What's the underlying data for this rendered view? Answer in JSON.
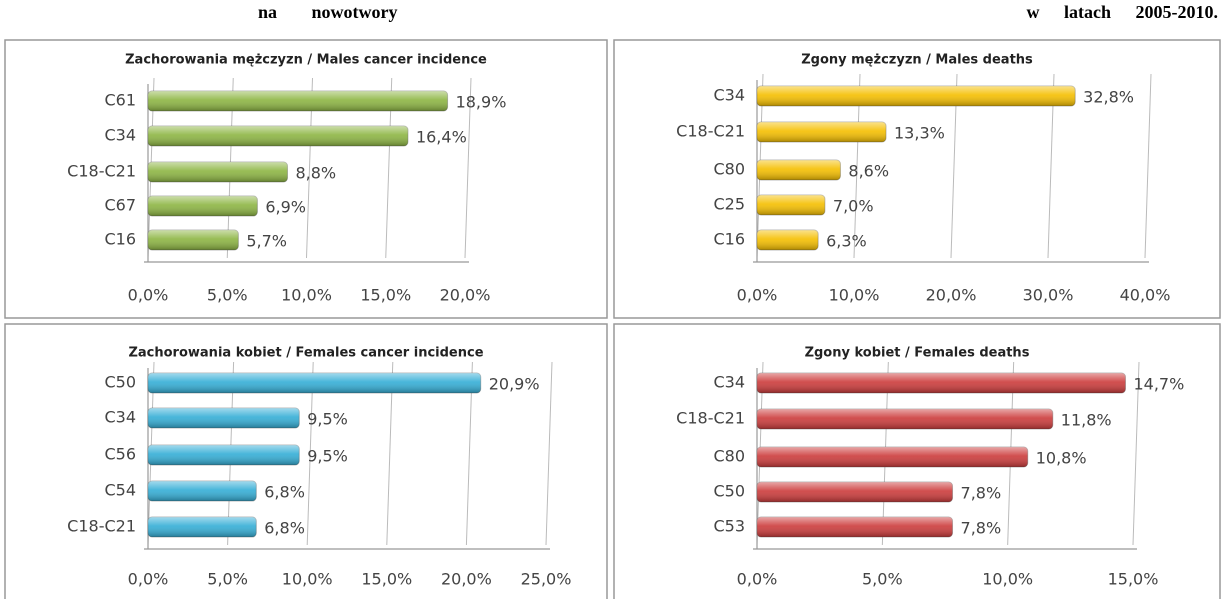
{
  "header": {
    "left": "na nowotwory",
    "right": "w latach 2005-2010."
  },
  "chart_data": [
    {
      "type": "bar",
      "orientation": "horizontal",
      "title": "Zachorowania mężczyzn / Males cancer incidence",
      "categories": [
        "C61",
        "C34",
        "C18-C21",
        "C67",
        "C16"
      ],
      "values": [
        18.9,
        16.4,
        8.8,
        6.9,
        5.7
      ],
      "value_labels": [
        "18,9%",
        "16,4%",
        "8,8%",
        "6,9%",
        "5,7%"
      ],
      "color": "#8db543",
      "grid": true,
      "xlim": [
        0,
        20
      ],
      "xticks": [
        {
          "value": 0,
          "label": "0,0%"
        },
        {
          "value": 5,
          "label": "5,0%"
        },
        {
          "value": 10,
          "label": "10,0%"
        },
        {
          "value": 15,
          "label": "15,0%"
        },
        {
          "value": 20,
          "label": "20,0%"
        }
      ]
    },
    {
      "type": "bar",
      "orientation": "horizontal",
      "title": "Zgony mężczyzn / Males deaths",
      "categories": [
        "C34",
        "C18-C21",
        "C80",
        "C25",
        "C16"
      ],
      "values": [
        32.8,
        13.3,
        8.6,
        7.0,
        6.3
      ],
      "value_labels": [
        "32,8%",
        "13,3%",
        "8,6%",
        "7,0%",
        "6,3%"
      ],
      "color": "#f5bf00",
      "grid": true,
      "xlim": [
        0,
        40
      ],
      "xticks": [
        {
          "value": 0,
          "label": "0,0%"
        },
        {
          "value": 10,
          "label": "10,0%"
        },
        {
          "value": 20,
          "label": "20,0%"
        },
        {
          "value": 30,
          "label": "30,0%"
        },
        {
          "value": 40,
          "label": "40,0%"
        }
      ]
    },
    {
      "type": "bar",
      "orientation": "horizontal",
      "title": "Zachorowania kobiet / Females cancer incidence",
      "categories": [
        "C50",
        "C34",
        "C56",
        "C54",
        "C18-C21"
      ],
      "values": [
        20.9,
        9.5,
        9.5,
        6.8,
        6.8
      ],
      "value_labels": [
        "20,9%",
        "9,5%",
        "9,5%",
        "6,8%",
        "6,8%"
      ],
      "color": "#34aed6",
      "grid": true,
      "xlim": [
        0,
        25
      ],
      "xticks": [
        {
          "value": 0,
          "label": "0,0%"
        },
        {
          "value": 5,
          "label": "5,0%"
        },
        {
          "value": 10,
          "label": "10,0%"
        },
        {
          "value": 15,
          "label": "15,0%"
        },
        {
          "value": 20,
          "label": "20,0%"
        },
        {
          "value": 25,
          "label": "25,0%"
        }
      ]
    },
    {
      "type": "bar",
      "orientation": "horizontal",
      "title": "Zgony kobiet / Females deaths",
      "categories": [
        "C34",
        "C18-C21",
        "C80",
        "C50",
        "C53"
      ],
      "values": [
        14.7,
        11.8,
        10.8,
        7.8,
        7.8
      ],
      "value_labels": [
        "14,7%",
        "11,8%",
        "10,8%",
        "7,8%",
        "7,8%"
      ],
      "color": "#cc3b3b",
      "grid": true,
      "xlim": [
        0,
        15
      ],
      "xticks": [
        {
          "value": 0,
          "label": "0,0%"
        },
        {
          "value": 5,
          "label": "5,0%"
        },
        {
          "value": 10,
          "label": "10,0%"
        },
        {
          "value": 15,
          "label": "15,0%"
        }
      ]
    }
  ]
}
